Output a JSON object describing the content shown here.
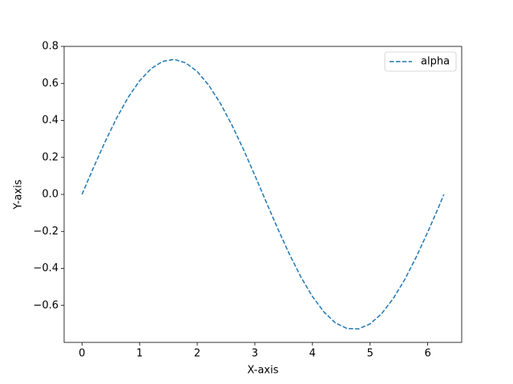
{
  "chart_data": {
    "type": "line",
    "x_label": "X-axis",
    "y_label": "Y-axis",
    "x": [
      0,
      0.2,
      0.4,
      0.6,
      0.8,
      1.0,
      1.2,
      1.4,
      1.6,
      1.8,
      2.0,
      2.2,
      2.4,
      2.6,
      2.8,
      3.0,
      3.2,
      3.4,
      3.6,
      3.8,
      4.0,
      4.2,
      4.4,
      4.6,
      4.8,
      5.0,
      5.2,
      5.4,
      5.6,
      5.8,
      6.0,
      6.2,
      6.28
    ],
    "series": [
      {
        "name": "alpha",
        "color": "#1f77b4",
        "dash": true,
        "values": [
          0,
          0.145,
          0.284,
          0.412,
          0.524,
          0.614,
          0.68,
          0.719,
          0.73,
          0.711,
          0.664,
          0.59,
          0.493,
          0.376,
          0.245,
          0.103,
          -0.043,
          -0.187,
          -0.323,
          -0.447,
          -0.552,
          -0.636,
          -0.695,
          -0.725,
          -0.727,
          -0.7,
          -0.645,
          -0.564,
          -0.461,
          -0.339,
          -0.204,
          -0.061,
          0
        ]
      }
    ],
    "xlim": [
      -0.31,
      6.59
    ],
    "ylim": [
      -0.8,
      0.8
    ],
    "xticks": [
      0,
      1,
      2,
      3,
      4,
      5,
      6
    ],
    "yticks": [
      {
        "value": -0.6,
        "label": "−0.6"
      },
      {
        "value": -0.4,
        "label": "−0.4"
      },
      {
        "value": -0.2,
        "label": "−0.2"
      },
      {
        "value": 0,
        "label": "0.0"
      },
      0.2,
      0.4,
      0.6,
      0.8
    ],
    "legend": "upper right",
    "grid": false
  }
}
